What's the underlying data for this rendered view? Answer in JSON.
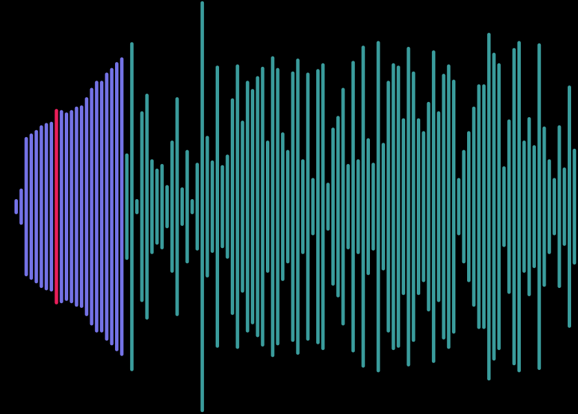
{
  "waveform": {
    "colors": {
      "background": "#000000",
      "played": "#7472E6",
      "cursor": "#E91E5A",
      "unplayed": "#3A9C9C"
    },
    "cursor_index": 8,
    "played_count": 22,
    "levels": [
      0.05,
      0.14,
      0.58,
      0.61,
      0.64,
      0.68,
      0.7,
      0.71,
      0.82,
      0.81,
      0.79,
      0.81,
      0.84,
      0.85,
      0.92,
      1.0,
      1.06,
      1.06,
      1.13,
      1.17,
      1.22,
      1.26,
      0.44,
      1.39,
      0.05,
      0.8,
      0.95,
      0.39,
      0.31,
      0.35,
      0.17,
      0.55,
      0.92,
      0.15,
      0.47,
      0.05,
      0.36,
      1.74,
      0.59,
      0.38,
      1.19,
      0.34,
      0.43,
      0.91,
      1.2,
      0.72,
      1.06,
      0.99,
      1.1,
      1.18,
      0.55,
      1.27,
      1.17,
      0.62,
      0.47,
      1.14,
      1.25,
      0.39,
      1.13,
      0.23,
      1.16,
      1.21,
      0.19,
      0.66,
      0.76,
      1.0,
      0.35,
      1.23,
      0.39,
      1.36,
      0.57,
      0.36,
      1.4,
      0.53,
      1.06,
      1.21,
      1.19,
      0.74,
      1.35,
      1.14,
      0.74,
      0.63,
      0.88,
      1.32,
      0.8,
      1.12,
      1.2,
      1.07,
      0.23,
      0.47,
      0.63,
      0.84,
      1.03,
      1.03,
      1.47,
      1.3,
      1.21,
      0.33,
      0.73,
      1.34,
      1.4,
      0.55,
      0.75,
      0.51,
      1.38,
      0.67,
      0.39,
      0.23,
      0.68,
      0.32,
      1.02,
      0.48
    ]
  }
}
